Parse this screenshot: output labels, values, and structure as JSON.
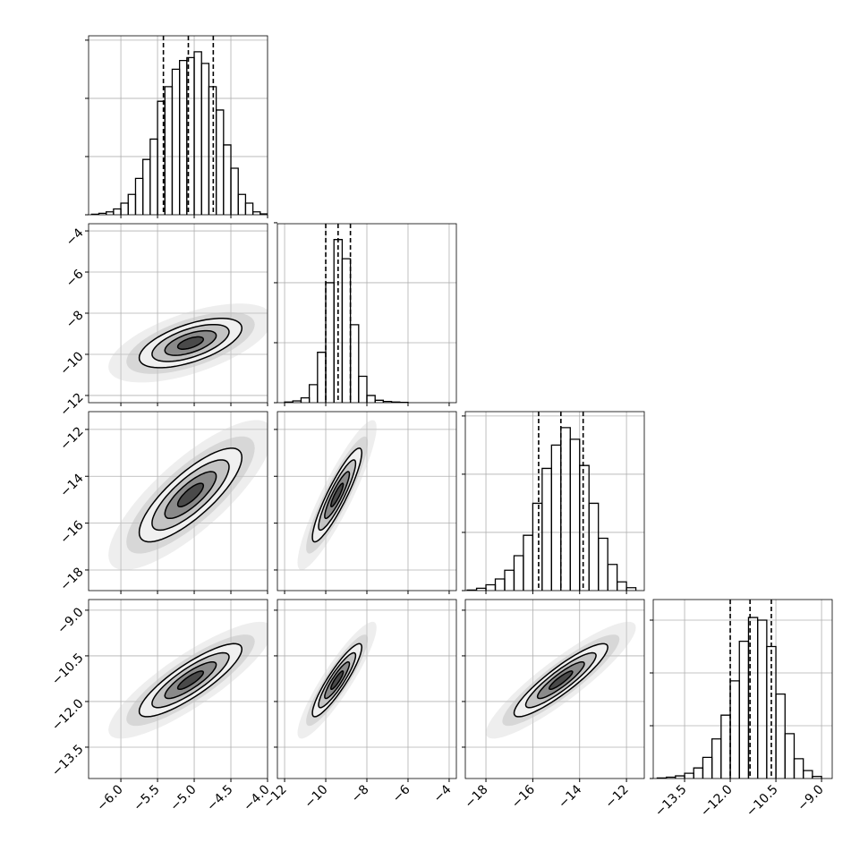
{
  "chart_data": {
    "type": "corner",
    "color": "#000000",
    "grid": true,
    "levels": [
      0.5,
      1,
      1.5,
      2
    ],
    "variables": [
      {
        "lim": [
          -6.44,
          -4.0
        ],
        "mean": -5.05,
        "sd": 0.35,
        "ticks": [
          {
            "value": -6.0,
            "label": "−6.0"
          },
          {
            "value": -5.5,
            "label": "−5.5"
          },
          {
            "value": -5.0,
            "label": "−5.0"
          },
          {
            "value": -4.5,
            "label": "−4.5"
          },
          {
            "value": -4.0,
            "label": "−4.0"
          }
        ],
        "quantiles": [
          -5.42,
          -5.08,
          -4.74
        ],
        "hist": {
          "bins": [
            -6.4,
            -6.3,
            -6.2,
            -6.1,
            -6.0,
            -5.9,
            -5.8,
            -5.7,
            -5.6,
            -5.5,
            -5.4,
            -5.3,
            -5.2,
            -5.1,
            -5.0,
            -4.9,
            -4.8,
            -4.7,
            -4.6,
            -4.5,
            -4.4,
            -4.3,
            -4.2,
            -4.1,
            -4.0
          ],
          "counts": [
            2,
            5,
            10,
            20,
            40,
            70,
            125,
            190,
            260,
            390,
            440,
            500,
            530,
            540,
            560,
            520,
            440,
            360,
            240,
            160,
            70,
            40,
            10,
            3
          ],
          "ylim": [
            0,
            615
          ],
          "yticks": [
            0,
            200,
            400,
            600
          ]
        }
      },
      {
        "lim": [
          -12.35,
          -3.65
        ],
        "mean": -9.45,
        "sd": 0.6,
        "ticks": [
          {
            "value": -12,
            "label": "−12"
          },
          {
            "value": -10,
            "label": "−10"
          },
          {
            "value": -8,
            "label": "−8"
          },
          {
            "value": -6,
            "label": "−6"
          },
          {
            "value": -4,
            "label": "−4"
          }
        ],
        "quantiles": [
          -10.0,
          -9.4,
          -8.8
        ],
        "hist": {
          "bins": [
            -12.0,
            -11.6,
            -11.2,
            -10.8,
            -10.4,
            -10.0,
            -9.6,
            -9.2,
            -8.8,
            -8.4,
            -8.0,
            -7.6,
            -7.2,
            -6.8,
            -6.4,
            -6.0
          ],
          "counts": [
            5,
            15,
            40,
            150,
            420,
            1000,
            1360,
            1200,
            650,
            220,
            60,
            20,
            10,
            5,
            3
          ],
          "ylim": [
            0,
            1492
          ],
          "yticks": [
            0,
            500,
            1000,
            1500
          ]
        }
      },
      {
        "lim": [
          -18.88,
          -11.24
        ],
        "mean": -14.8,
        "sd": 1.0,
        "ticks": [
          {
            "value": -18,
            "label": "−18"
          },
          {
            "value": -16,
            "label": "−16"
          },
          {
            "value": -14,
            "label": "−14"
          },
          {
            "value": -12,
            "label": "−12"
          }
        ],
        "quantiles": [
          -15.75,
          -14.8,
          -13.85
        ],
        "hist": {
          "bins": [
            -18.8,
            -18.4,
            -18.0,
            -17.6,
            -17.2,
            -16.8,
            -16.4,
            -16.0,
            -15.6,
            -15.2,
            -14.8,
            -14.4,
            -14.0,
            -13.6,
            -13.2,
            -12.8,
            -12.4,
            -12.0,
            -11.6
          ],
          "counts": [
            2,
            8,
            20,
            40,
            70,
            120,
            190,
            300,
            420,
            500,
            560,
            520,
            430,
            300,
            180,
            90,
            30,
            10
          ],
          "ylim": [
            0,
            615
          ],
          "yticks": [
            0,
            200,
            400,
            600
          ]
        }
      },
      {
        "lim": [
          -14.53,
          -8.65
        ],
        "mean": -11.3,
        "sd": 0.6,
        "ticks": [
          {
            "value": -13.5,
            "label": "−13.5"
          },
          {
            "value": -12.0,
            "label": "−12.0"
          },
          {
            "value": -10.5,
            "label": "−10.5"
          },
          {
            "value": -9.0,
            "label": "−9.0"
          }
        ],
        "quantiles": [
          -12.0,
          -11.35,
          -10.65
        ],
        "hist": {
          "bins": [
            -14.4,
            -14.1,
            -13.8,
            -13.5,
            -13.2,
            -12.9,
            -12.6,
            -12.3,
            -12.0,
            -11.7,
            -11.4,
            -11.1,
            -10.8,
            -10.5,
            -10.2,
            -9.9,
            -9.6,
            -9.3,
            -9.0
          ],
          "counts": [
            2,
            5,
            10,
            20,
            40,
            80,
            150,
            240,
            370,
            520,
            610,
            600,
            500,
            320,
            170,
            75,
            30,
            8
          ],
          "ylim": [
            0,
            678
          ],
          "yticks": [
            0,
            200,
            400,
            600
          ]
        }
      }
    ],
    "pairs": [
      {
        "x": 0,
        "y": 1,
        "corr": 0.6
      },
      {
        "x": 0,
        "y": 2,
        "corr": 0.8
      },
      {
        "x": 1,
        "y": 2,
        "corr": 0.9
      },
      {
        "x": 0,
        "y": 3,
        "corr": 0.85
      },
      {
        "x": 1,
        "y": 3,
        "corr": 0.9
      },
      {
        "x": 2,
        "y": 3,
        "corr": 0.9
      }
    ]
  }
}
